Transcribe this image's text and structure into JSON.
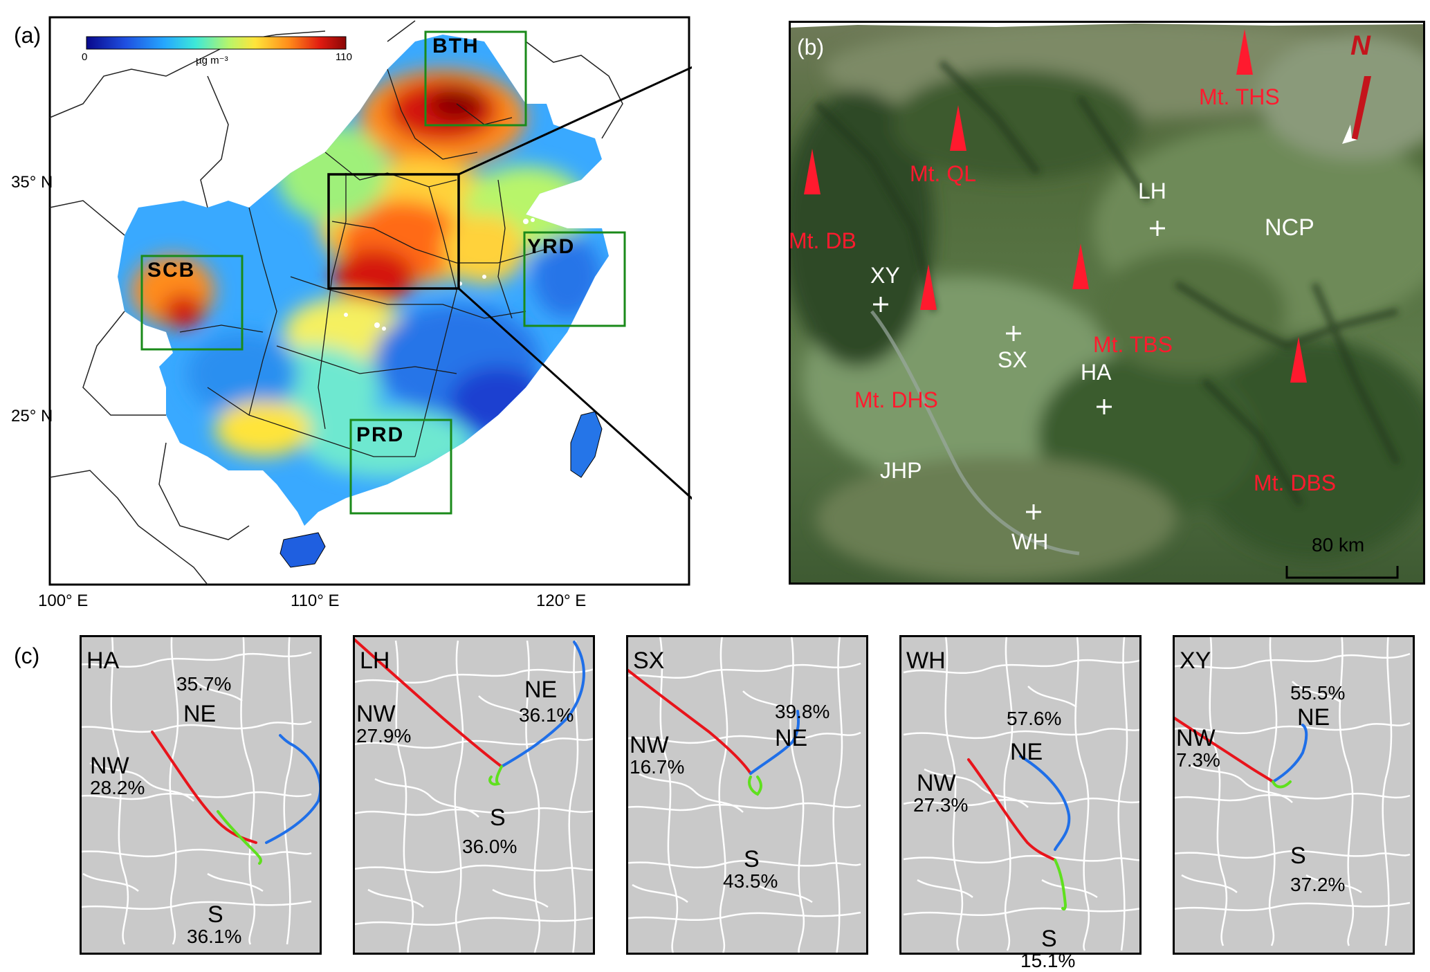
{
  "panel_a": {
    "label": "(a)",
    "colorbar": {
      "min": "0",
      "max": "110",
      "unit": "µg m⁻³",
      "colors": [
        "#08088c",
        "#1f4fe0",
        "#25a7ff",
        "#3de8d8",
        "#b8f56a",
        "#ffe43a",
        "#ff8c1a",
        "#e01b10",
        "#8a0606"
      ]
    },
    "regions": [
      "BTH",
      "SCB",
      "YRD",
      "PRD"
    ],
    "lat_ticks": [
      "35° N",
      "25° N"
    ],
    "lon_ticks": [
      "100° E",
      "110° E",
      "120° E"
    ],
    "box_color": "#1a8a1a"
  },
  "panel_b": {
    "label": "(b)",
    "mountains": [
      "Mt. THS",
      "Mt. QL",
      "Mt. DB",
      "Mt. TBS",
      "Mt. DHS",
      "Mt. DBS"
    ],
    "sites": [
      "LH",
      "XY",
      "SX",
      "HA",
      "WH"
    ],
    "areas": [
      "NCP",
      "JHP"
    ],
    "north": "N",
    "scale": "80 km",
    "mountain_color": "#ff1a2e"
  },
  "panel_c": {
    "label": "(c)",
    "panels": [
      {
        "site": "HA",
        "NW": "28.2%",
        "NE": "35.7%",
        "S": "36.1%"
      },
      {
        "site": "LH",
        "NW": "27.9%",
        "NE": "36.1%",
        "S": "36.0%"
      },
      {
        "site": "SX",
        "NW": "16.7%",
        "NE": "39.8%",
        "S": "43.5%"
      },
      {
        "site": "WH",
        "NW": "27.3%",
        "NE": "57.6%",
        "S": "15.1%"
      },
      {
        "site": "XY",
        "NW": "7.3%",
        "NE": "55.5%",
        "S": "37.2%"
      }
    ],
    "direction_labels": {
      "nw": "NW",
      "ne": "NE",
      "s": "S"
    },
    "colors": {
      "nw": "#e8141b",
      "ne": "#1f6fe8",
      "s": "#5fe01e"
    }
  }
}
